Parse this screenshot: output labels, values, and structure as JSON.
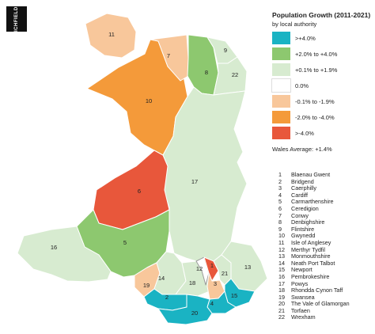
{
  "logo": {
    "text": "LICHFIELDS"
  },
  "legend": {
    "title": "Population Growth (2011-2021)",
    "subtitle": "by local authority",
    "items": [
      {
        "label": ">+4.0%",
        "color": "#1ab3c3"
      },
      {
        "label": "+2.0% to +4.0%",
        "color": "#8dc86f"
      },
      {
        "label": "+0.1% to +1.9%",
        "color": "#d7ebd0"
      },
      {
        "label": "0.0%",
        "color": "#ffffff"
      },
      {
        "label": "-0.1% to -1.9%",
        "color": "#f8c79b"
      },
      {
        "label": "-2.0% to -4.0%",
        "color": "#f49a3a"
      },
      {
        "label": ">-4.0%",
        "color": "#e8573b"
      }
    ],
    "average": "Wales Average: +1.4%"
  },
  "authorities": [
    {
      "num": "1",
      "name": "Blaenau Gwent"
    },
    {
      "num": "2",
      "name": "Bridgend"
    },
    {
      "num": "3",
      "name": "Caerphilly"
    },
    {
      "num": "4",
      "name": "Cardiff"
    },
    {
      "num": "5",
      "name": "Carmarthenshire"
    },
    {
      "num": "6",
      "name": "Ceredigion"
    },
    {
      "num": "7",
      "name": "Conwy"
    },
    {
      "num": "8",
      "name": "Denbighshire"
    },
    {
      "num": "9",
      "name": "Flintshire"
    },
    {
      "num": "10",
      "name": "Gwynedd"
    },
    {
      "num": "11",
      "name": "Isle of Anglesey"
    },
    {
      "num": "12",
      "name": "Merthyr Tydfil"
    },
    {
      "num": "13",
      "name": "Monmouthshire"
    },
    {
      "num": "14",
      "name": "Neath Port Talbot"
    },
    {
      "num": "15",
      "name": "Newport"
    },
    {
      "num": "16",
      "name": "Pembrokeshire"
    },
    {
      "num": "17",
      "name": "Powys"
    },
    {
      "num": "18",
      "name": "Rhondda Cynon Taff"
    },
    {
      "num": "19",
      "name": "Swansea"
    },
    {
      "num": "20",
      "name": "The Vale of Glamorgan"
    },
    {
      "num": "21",
      "name": "Torfaen"
    },
    {
      "num": "22",
      "name": "Wrexham"
    }
  ],
  "region_categories": {
    "1": ">-4.0%",
    "2": ">+4.0%",
    "3": "-0.1% to -1.9%",
    "4": ">+4.0%",
    "5": "+2.0% to +4.0%",
    "6": ">-4.0%",
    "7": "-0.1% to -1.9%",
    "8": "+2.0% to +4.0%",
    "9": "+0.1% to +1.9%",
    "10": "-2.0% to -4.0%",
    "11": "-0.1% to -1.9%",
    "12": "0.0%",
    "13": "+0.1% to +1.9%",
    "14": "+0.1% to +1.9%",
    "15": ">+4.0%",
    "16": "+0.1% to +1.9%",
    "17": "+0.1% to +1.9%",
    "18": "+0.1% to +1.9%",
    "19": "-0.1% to -1.9%",
    "20": ">+4.0%",
    "21": "+0.1% to +1.9%",
    "22": "+0.1% to +1.9%"
  }
}
